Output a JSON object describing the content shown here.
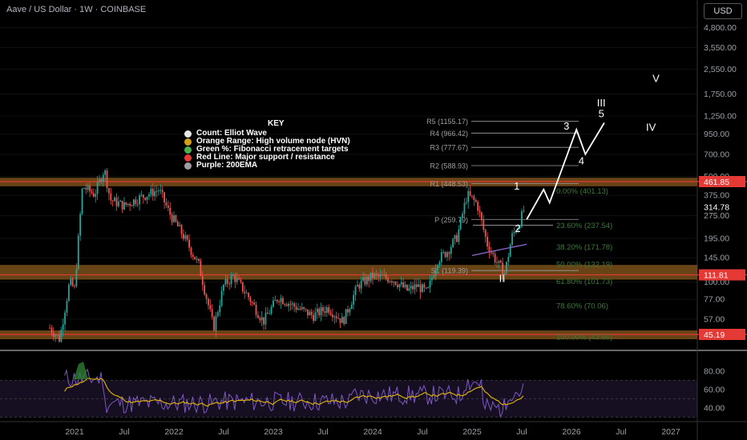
{
  "header": {
    "title": "Aave / US Dollar · 1W · COINBASE",
    "currency_button": "USD"
  },
  "legend": {
    "heading": "KEY",
    "items": [
      {
        "label": "Count: Elliot Wave",
        "color": "#e8e8e8"
      },
      {
        "label": "Orange Range: High volume node (HVN)",
        "color": "#d4a017"
      },
      {
        "label": "Green %: Fibonacci retracement targets",
        "color": "#4caf50"
      },
      {
        "label": "Red Line: Major support / resistance",
        "color": "#e53935"
      },
      {
        "label": "Purple: 200EMA",
        "color": "#9e9e9e"
      }
    ]
  },
  "colors": {
    "up": "#26a69a",
    "down": "#ef5350",
    "resistance": "#e53935",
    "hvn": "#8a5a1e",
    "fib": "#3d7a3a",
    "ema": "#8e6bd1",
    "rsi": "#7e57c2",
    "rsi_ma": "#e6b800"
  },
  "chart_data": {
    "type": "candlestick",
    "x_ticks": [
      "2021",
      "Jul",
      "2022",
      "Jul",
      "2023",
      "Jul",
      "2024",
      "Jul",
      "2025",
      "Jul",
      "2026",
      "Jul",
      "2027"
    ],
    "y_scale": "log",
    "y_ticks": [
      "4,800.00",
      "3,550.00",
      "2,550.00",
      "1,750.00",
      "1,250.00",
      "950.00",
      "700.00",
      "500.00",
      "375.00",
      "275.00",
      "195.00",
      "145.00",
      "100.00",
      "77.00",
      "57.00"
    ],
    "price_labels": [
      {
        "value": "461.85",
        "kind": "resistance"
      },
      {
        "value": "314.78",
        "kind": "current"
      },
      {
        "value": "111.81",
        "kind": "resistance"
      },
      {
        "value": "45.19",
        "kind": "resistance"
      }
    ],
    "resistance_lines": [
      461.85,
      111.81,
      45.19
    ],
    "hvn_zones": [
      [
        430,
        490
      ],
      [
        104,
        130
      ],
      [
        42,
        48
      ]
    ],
    "pivots": [
      {
        "label": "R5 (1155.17)",
        "value": 1155.17
      },
      {
        "label": "R4 (966.42)",
        "value": 966.42
      },
      {
        "label": "R3 (777.67)",
        "value": 777.67
      },
      {
        "label": "R2 (588.93)",
        "value": 588.93
      },
      {
        "label": "R1 (448.53)",
        "value": 448.53
      },
      {
        "label": "P (259.79)",
        "value": 259.79
      },
      {
        "label": "S1 (119.39)",
        "value": 119.39
      }
    ],
    "fib_levels": [
      {
        "label": "0.00% (401.13)",
        "value": 401.13
      },
      {
        "label": "23.60% (237.54)",
        "value": 237.54
      },
      {
        "label": "38.20% (171.78)",
        "value": 171.78
      },
      {
        "label": "50.00% (132.19)",
        "value": 132.19
      },
      {
        "label": "61.80% (101.73)",
        "value": 101.73
      },
      {
        "label": "78.60% (70.06)",
        "value": 70.06
      },
      {
        "label": "100.00% (43.56)",
        "value": 43.56
      }
    ],
    "wave_labels": [
      {
        "label": "1",
        "date": 2025.45,
        "value": 410
      },
      {
        "label": "2",
        "date": 2025.46,
        "value": 215
      },
      {
        "label": "3",
        "date": 2025.95,
        "value": 1020
      },
      {
        "label": "4",
        "date": 2026.1,
        "value": 600
      },
      {
        "label": "5",
        "date": 2026.3,
        "value": 1230
      },
      {
        "label": "III",
        "date": 2026.3,
        "value": 1450
      },
      {
        "label": "II",
        "date": 2025.3,
        "value": 100
      },
      {
        "label": "IV",
        "date": 2026.8,
        "value": 1000
      },
      {
        "label": "V",
        "date": 2026.85,
        "value": 2100
      }
    ],
    "wave_path": [
      [
        2025.55,
        260
      ],
      [
        2025.72,
        410
      ],
      [
        2025.78,
        335
      ],
      [
        2026.05,
        1020
      ],
      [
        2026.14,
        700
      ],
      [
        2026.33,
        1130
      ]
    ],
    "candle_path": [
      [
        2020.75,
        50
      ],
      [
        2020.85,
        42
      ],
      [
        2020.95,
        100
      ],
      [
        2021.0,
        90
      ],
      [
        2021.08,
        430
      ],
      [
        2021.2,
        380
      ],
      [
        2021.3,
        560
      ],
      [
        2021.36,
        350
      ],
      [
        2021.5,
        320
      ],
      [
        2021.65,
        360
      ],
      [
        2021.85,
        410
      ],
      [
        2021.95,
        290
      ],
      [
        2022.1,
        200
      ],
      [
        2022.25,
        130
      ],
      [
        2022.4,
        50
      ],
      [
        2022.5,
        95
      ],
      [
        2022.6,
        110
      ],
      [
        2022.75,
        80
      ],
      [
        2022.9,
        55
      ],
      [
        2023.05,
        80
      ],
      [
        2023.2,
        70
      ],
      [
        2023.4,
        60
      ],
      [
        2023.55,
        68
      ],
      [
        2023.7,
        55
      ],
      [
        2023.85,
        95
      ],
      [
        2024.0,
        110
      ],
      [
        2024.2,
        105
      ],
      [
        2024.35,
        88
      ],
      [
        2024.45,
        95
      ],
      [
        2024.55,
        85
      ],
      [
        2024.65,
        140
      ],
      [
        2024.75,
        160
      ],
      [
        2024.85,
        200
      ],
      [
        2024.95,
        380
      ],
      [
        2025.05,
        330
      ],
      [
        2025.15,
        180
      ],
      [
        2025.25,
        135
      ],
      [
        2025.33,
        115
      ],
      [
        2025.4,
        200
      ],
      [
        2025.48,
        250
      ],
      [
        2025.53,
        315
      ]
    ],
    "ema_200": [
      [
        2025.0,
        150
      ],
      [
        2025.2,
        160
      ],
      [
        2025.55,
        178
      ]
    ],
    "rsi": {
      "y_ticks": [
        "80.00",
        "60.00",
        "40.00"
      ],
      "range": [
        20,
        90
      ]
    }
  }
}
